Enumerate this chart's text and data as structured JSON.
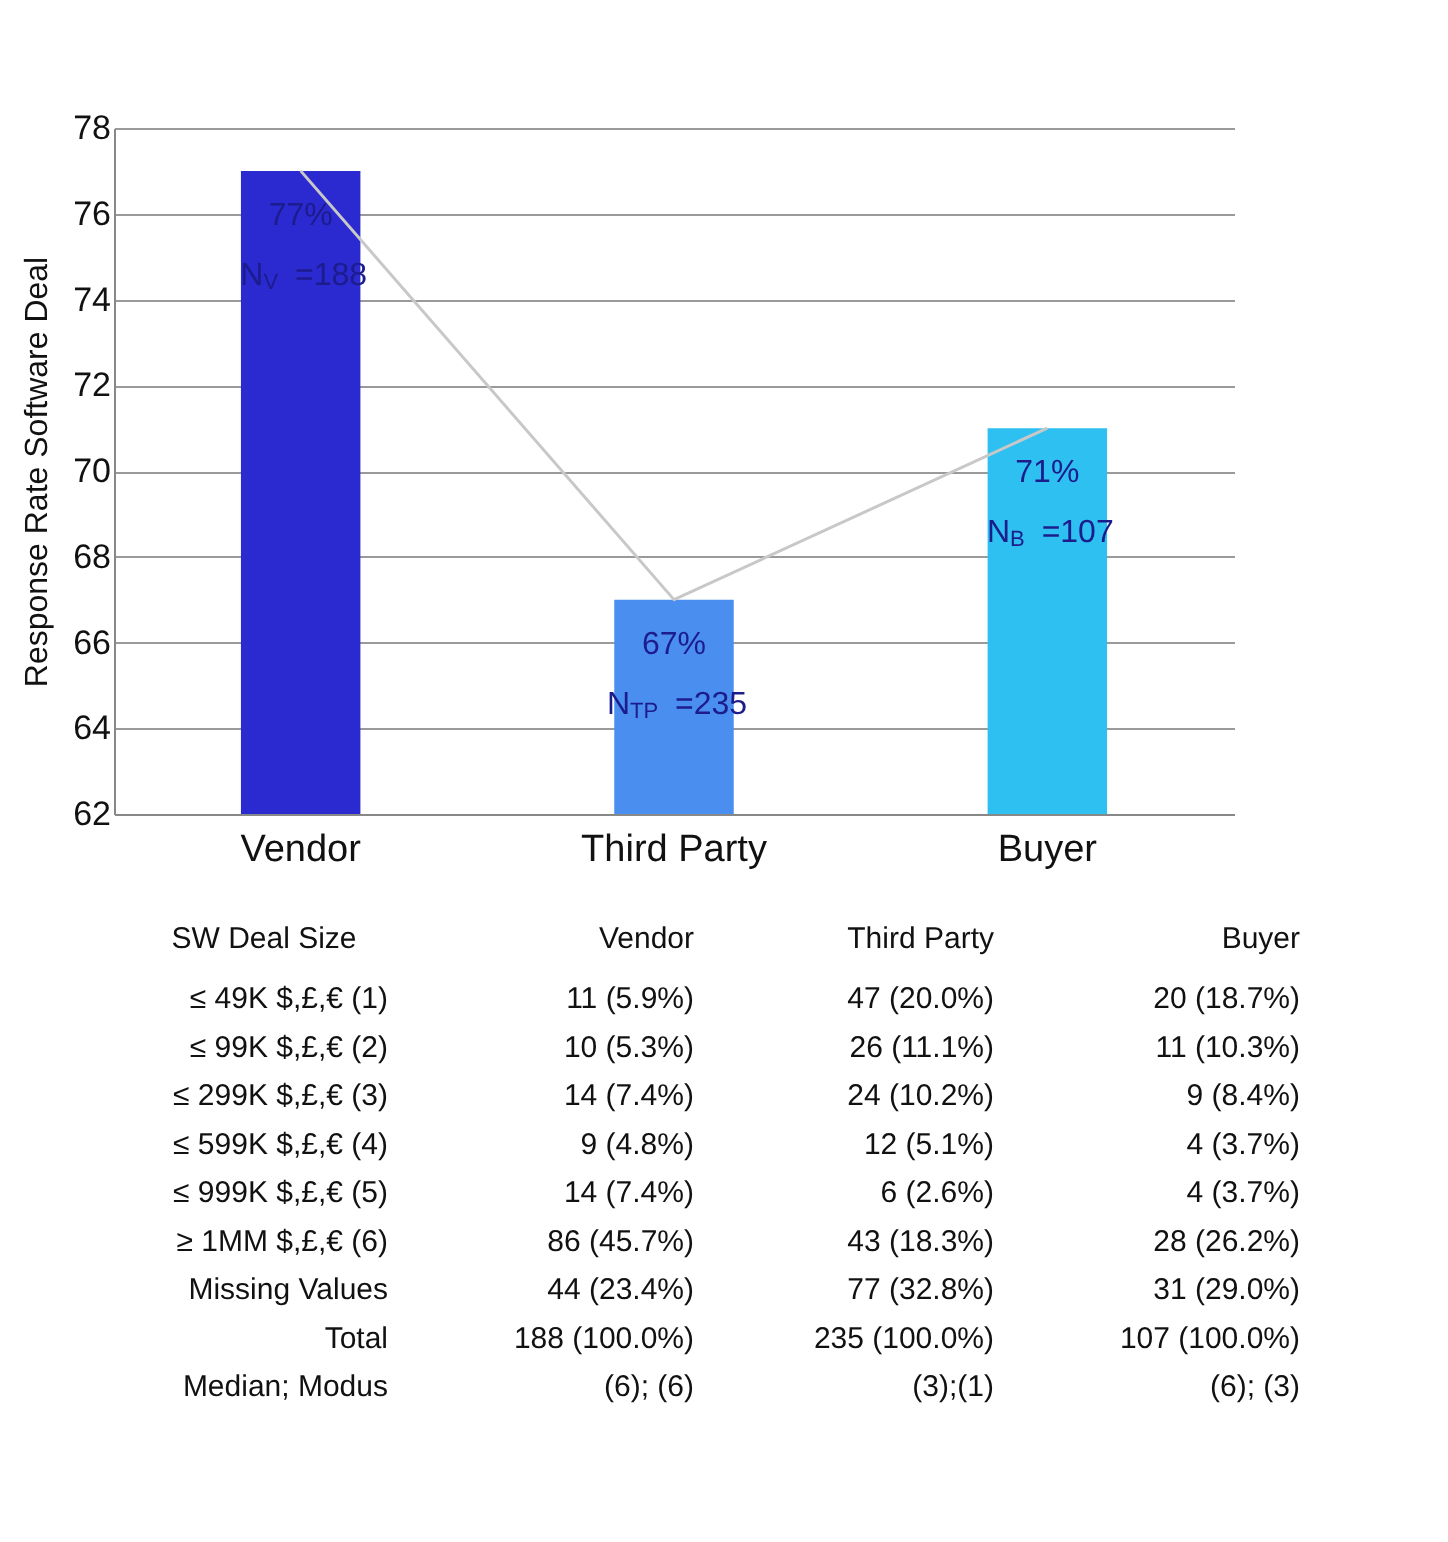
{
  "chart_data": [
    {
      "type": "bar",
      "ylabel": "Response Rate Software Deal",
      "categories": [
        "Vendor",
        "Third Party",
        "Buyer"
      ],
      "series": [
        {
          "type": "bar",
          "values": [
            77,
            67,
            71
          ],
          "colors": [
            "#2a2ad0",
            "#4a8ef0",
            "#2ec0f0"
          ],
          "value_labels": [
            "77%",
            "67%",
            "71%"
          ]
        },
        {
          "type": "line",
          "color": "#c8c8c8",
          "values": [
            77,
            67,
            71
          ]
        }
      ],
      "ylim": [
        62,
        78
      ],
      "yticks": [
        62,
        64,
        66,
        68,
        70,
        72,
        74,
        76,
        78
      ],
      "grid": "y",
      "annotations": [
        "N$_{V}$ =188",
        "N$_{TP}$ =235",
        "N$_{B}$ =107"
      ]
    },
    {
      "type": "other",
      "ylabel": "SW Deal Size",
      "categories": [
        "Vendor",
        "Third Party",
        "Buyer"
      ],
      "y_categories": [
        "≤ 49K $,£,€ (1)",
        "≤ 99K $,£,€ (2)",
        "≤ 299K $,£,€ (3)",
        "≤ 599K $,£,€ (4)",
        "≤ 999K $,£,€ (5)",
        "≥ 1MM $,£,€ (6)",
        "Missing Values",
        "Total",
        "Median; Modus"
      ],
      "cell_labels": [
        [
          "11 (5.9%)",
          "47 (20.0%)",
          "20 (18.7%)"
        ],
        [
          "10 (5.3%)",
          "26 (11.1%)",
          "11 (10.3%)"
        ],
        [
          "14 (7.4%)",
          "24 (10.2%)",
          "9 (8.4%)"
        ],
        [
          "9 (4.8%)",
          "12 (5.1%)",
          "4 (3.7%)"
        ],
        [
          "14 (7.4%)",
          "6 (2.6%)",
          "4 (3.7%)"
        ],
        [
          "86 (45.7%)",
          "43 (18.3%)",
          "28 (26.2%)"
        ],
        [
          "44 (23.4%)",
          "77 (32.8%)",
          "31 (29.0%)"
        ],
        [
          "188 (100.0%)",
          "235 (100.0%)",
          "107 (100.0%)"
        ],
        [
          "(6); (6)",
          "(3);(1)",
          "(6); (3)"
        ]
      ]
    }
  ]
}
